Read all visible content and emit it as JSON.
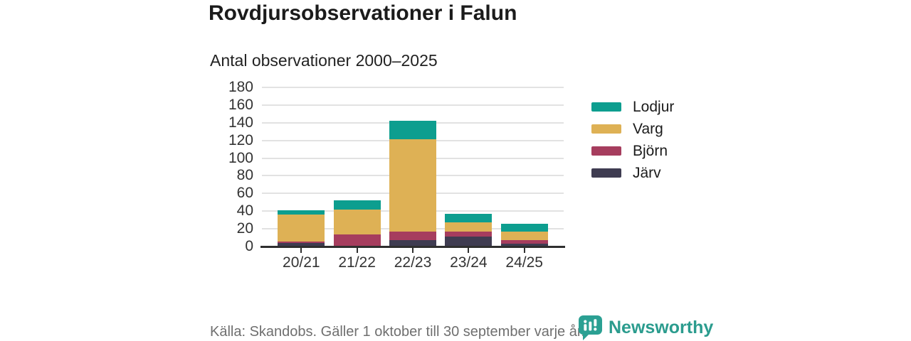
{
  "header": {
    "title": "Rovdjursobservationer i Falun",
    "subtitle": "Antal observationer 2000–2025"
  },
  "chart_data": {
    "type": "bar",
    "stacked": true,
    "title": "Rovdjursobservationer i Falun",
    "subtitle": "Antal observationer 2000–2025",
    "categories": [
      "20/21",
      "21/22",
      "22/23",
      "23/24",
      "24/25"
    ],
    "series": [
      {
        "name": "Järv",
        "color": "#3f3c51",
        "values": [
          4,
          1,
          7,
          11,
          3
        ]
      },
      {
        "name": "Björn",
        "color": "#a63d5e",
        "values": [
          2,
          13,
          10,
          6,
          4
        ]
      },
      {
        "name": "Varg",
        "color": "#deb155",
        "values": [
          30,
          28,
          104,
          10,
          10
        ]
      },
      {
        "name": "Lodjur",
        "color": "#0d9e8f",
        "values": [
          5,
          10,
          21,
          10,
          9
        ]
      }
    ],
    "totals": [
      41,
      52,
      142,
      37,
      26
    ],
    "legend_order": [
      "Lodjur",
      "Varg",
      "Björn",
      "Järv"
    ],
    "legend_position": "right",
    "xlabel": "",
    "ylabel": "",
    "ylim": [
      0,
      180
    ],
    "ytick_step": 20,
    "grid": true,
    "colors": {
      "grid": "#e2e2e2",
      "axis": "#2f2f2f",
      "tick_text": "#333333"
    }
  },
  "footer": {
    "source": "Källa: Skandobs. Gäller 1 oktober till 30 september varje år.",
    "brand": "Newsworthy",
    "brand_color": "#2b9c8e"
  }
}
